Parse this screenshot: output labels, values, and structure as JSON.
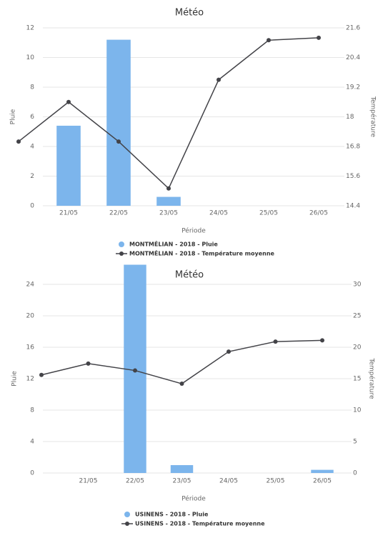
{
  "chart_data": [
    {
      "type": "bar",
      "title": "Météo",
      "categories": [
        null,
        "21/05",
        "22/05",
        "23/05",
        "24/05",
        "25/05",
        "26/05"
      ],
      "x_label": "Période",
      "y_label": "Pluie",
      "y2_label": "Température",
      "series": [
        {
          "name": "MONTMÉLIAN - 2018 - Pluie",
          "type": "bar",
          "color": "#7cb5ec",
          "values": [
            0,
            5.4,
            11.2,
            0.6,
            0,
            0,
            0
          ]
        },
        {
          "name": "MONTMÉLIAN - 2018 - Température moyenne",
          "type": "line",
          "axis": "y2",
          "color": "#434348",
          "values": [
            17.0,
            18.6,
            17.0,
            15.1,
            19.5,
            21.1,
            21.2
          ]
        }
      ],
      "ylim": [
        0,
        12
      ],
      "yticks": [
        0,
        2,
        4,
        6,
        8,
        10,
        12
      ],
      "y2lim": [
        14.4,
        21.6
      ],
      "y2ticks": [
        14.4,
        15.6,
        16.8,
        18,
        19.2,
        20.4,
        21.6
      ],
      "grid": true
    },
    {
      "type": "bar",
      "title": "Météo",
      "categories": [
        null,
        "21/05",
        "22/05",
        "23/05",
        "24/05",
        "25/05",
        "26/05"
      ],
      "x_label": "Période",
      "y_label": "Pluie",
      "y2_label": "Température",
      "series": [
        {
          "name": "USINENS - 2018 - Pluie",
          "type": "bar",
          "color": "#7cb5ec",
          "values": [
            0,
            0,
            26.5,
            1.0,
            0,
            0,
            0.4
          ]
        },
        {
          "name": "USINENS - 2018 - Température moyenne",
          "type": "line",
          "axis": "y2",
          "color": "#434348",
          "values": [
            15.6,
            17.4,
            16.3,
            14.2,
            19.3,
            20.9,
            21.1
          ]
        }
      ],
      "ylim": [
        0,
        24
      ],
      "yticks": [
        0,
        4,
        8,
        12,
        16,
        20,
        24
      ],
      "y2lim": [
        0,
        30
      ],
      "y2ticks": [
        0,
        5,
        10,
        15,
        20,
        25,
        30
      ],
      "grid": true
    }
  ]
}
